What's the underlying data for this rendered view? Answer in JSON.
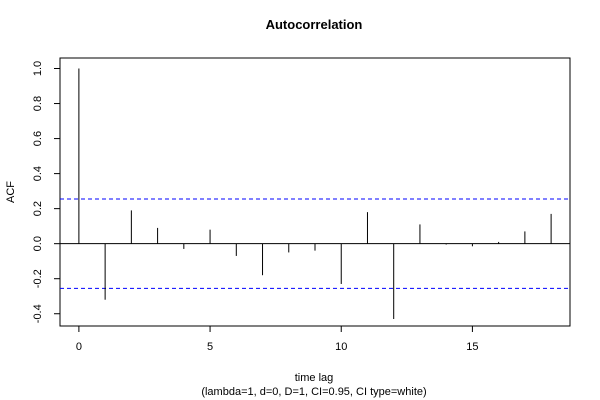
{
  "chart_data": {
    "type": "bar",
    "title": "Autocorrelation",
    "xlabel": "time lag",
    "subtitle": "(lambda=1, d=0, D=1, CI=0.95, CI type=white)",
    "ylabel": "ACF",
    "x": [
      0,
      1,
      2,
      3,
      4,
      5,
      6,
      7,
      8,
      9,
      10,
      11,
      12,
      13,
      14,
      15,
      16,
      17,
      18
    ],
    "values": [
      1.0,
      -0.32,
      0.19,
      0.09,
      -0.03,
      0.08,
      -0.07,
      -0.18,
      -0.05,
      -0.04,
      -0.23,
      0.18,
      -0.43,
      0.11,
      -0.005,
      -0.015,
      0.01,
      0.07,
      0.17
    ],
    "ci": [
      0.255,
      -0.255
    ],
    "xlim": [
      -0.72,
      18.72
    ],
    "ylim": [
      -0.47,
      1.06
    ],
    "xticks": [
      0,
      5,
      10,
      15
    ],
    "yticks": [
      -0.4,
      -0.2,
      0.0,
      0.2,
      0.4,
      0.6,
      0.8,
      1.0
    ],
    "xtick_labels": [
      "0",
      "5",
      "10",
      "15"
    ],
    "ytick_labels": [
      "-0.4",
      "-0.2",
      "0.0",
      "0.2",
      "0.4",
      "0.6",
      "0.8",
      "1.0"
    ],
    "ci_color": "#0000ff",
    "grid": false
  }
}
